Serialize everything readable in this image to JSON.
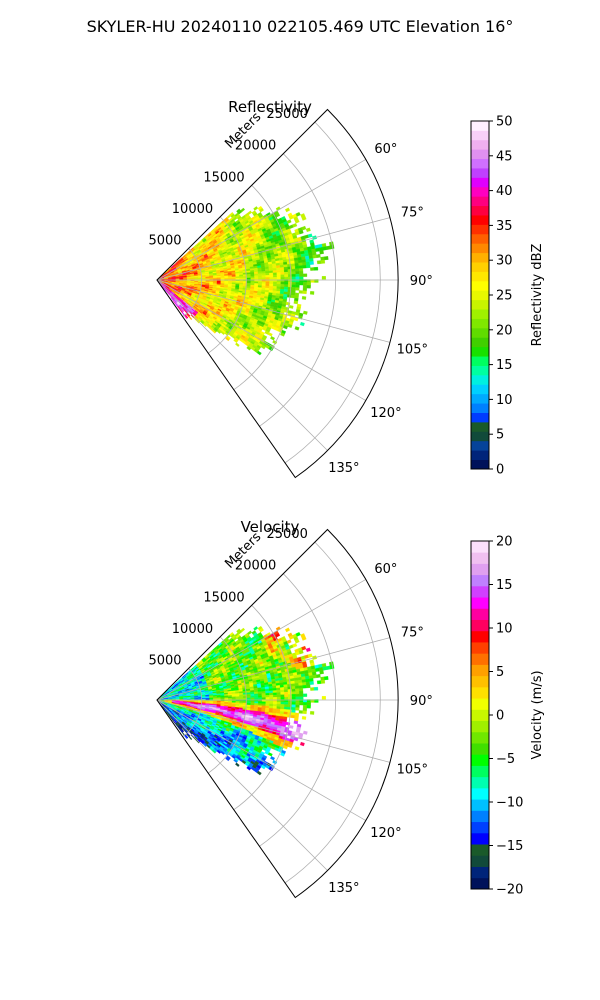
{
  "figure": {
    "suptitle": "SKYLER-HU  20240110  022105.469 UTC Elevation 16°"
  },
  "chart_data": [
    {
      "type": "heatmap",
      "projection": "polar-sector",
      "title": "Reflectivity",
      "radial_label": "Meters",
      "radial_ticks": [
        5000,
        10000,
        15000,
        20000,
        25000
      ],
      "radial_tick_labels": [
        "5000",
        "10000",
        "15000",
        "20000",
        "25000"
      ],
      "rlim": [
        0,
        27000
      ],
      "azimuth_range_deg": [
        45,
        145
      ],
      "azimuth_ticks": [
        60,
        75,
        90,
        105,
        120,
        135
      ],
      "azimuth_tick_labels": [
        "60°",
        "75°",
        "90°",
        "105°",
        "120°",
        "135°"
      ],
      "grid": true,
      "colorbar": {
        "label": "Reflectivity dBZ",
        "range": [
          0,
          50
        ],
        "ticks": [
          0,
          5,
          10,
          15,
          20,
          25,
          30,
          35,
          40,
          45,
          50
        ],
        "tick_labels": [
          "0",
          "5",
          "10",
          "15",
          "20",
          "25",
          "30",
          "35",
          "40",
          "45",
          "50"
        ],
        "colors": [
          "#00125a",
          "#00247a",
          "#06439a",
          "#114a3a",
          "#1a5a2a",
          "#003cff",
          "#0080ff",
          "#00aaff",
          "#00d0ff",
          "#00f0e0",
          "#00ffa0",
          "#00ff60",
          "#18e000",
          "#40d000",
          "#60dc00",
          "#80e800",
          "#a0f000",
          "#c8f400",
          "#e8f800",
          "#ffff00",
          "#ffe800",
          "#ffd000",
          "#ffb000",
          "#ff8800",
          "#ff6000",
          "#ff3000",
          "#ff0000",
          "#ff0040",
          "#ff0080",
          "#ff00c0",
          "#e000ff",
          "#c040ff",
          "#d070ff",
          "#e090f0",
          "#f0b0f0",
          "#f8d0f8",
          "#fff0ff"
        ]
      },
      "echo": {
        "max_range_by_azimuth": [
          [
            50,
            12000
          ],
          [
            58,
            15000
          ],
          [
            66,
            17500
          ],
          [
            74,
            19000
          ],
          [
            82,
            19500
          ],
          [
            90,
            18500
          ],
          [
            98,
            16500
          ],
          [
            106,
            17000
          ],
          [
            114,
            16000
          ],
          [
            122,
            15500
          ],
          [
            130,
            11500
          ],
          [
            138,
            5000
          ]
        ],
        "mean_by_range": [
          [
            0,
            35
          ],
          [
            5000,
            29
          ],
          [
            10000,
            25
          ],
          [
            15000,
            21
          ],
          [
            20000,
            18
          ]
        ]
      }
    },
    {
      "type": "heatmap",
      "projection": "polar-sector",
      "title": "Velocity",
      "radial_label": "Meters",
      "radial_ticks": [
        5000,
        10000,
        15000,
        20000,
        25000
      ],
      "radial_tick_labels": [
        "5000",
        "10000",
        "15000",
        "20000",
        "25000"
      ],
      "rlim": [
        0,
        27000
      ],
      "azimuth_range_deg": [
        45,
        145
      ],
      "azimuth_ticks": [
        60,
        75,
        90,
        105,
        120,
        135
      ],
      "azimuth_tick_labels": [
        "60°",
        "75°",
        "90°",
        "105°",
        "120°",
        "135°"
      ],
      "grid": true,
      "colorbar": {
        "label": "Velocity (m/s)",
        "range": [
          -20,
          20
        ],
        "ticks": [
          -20,
          -15,
          -10,
          -5,
          0,
          5,
          10,
          15,
          20
        ],
        "tick_labels": [
          "−20",
          "−15",
          "−10",
          "−5",
          "0",
          "5",
          "10",
          "15",
          "20"
        ],
        "colors": [
          "#00125a",
          "#00247a",
          "#114a3a",
          "#1a5a2a",
          "#0000ff",
          "#0040ff",
          "#0080ff",
          "#00c0ff",
          "#00ffff",
          "#00ffb0",
          "#00ff60",
          "#00ff00",
          "#40e000",
          "#70e800",
          "#a0f000",
          "#c8f800",
          "#f0ff00",
          "#ffe000",
          "#ffc000",
          "#ffa000",
          "#ff7000",
          "#ff4000",
          "#ff0000",
          "#ff0060",
          "#ff00a0",
          "#ff00ff",
          "#d040ff",
          "#c080ff",
          "#e0a0f0",
          "#f0c0f0",
          "#fbe0fb"
        ]
      },
      "echo": {
        "max_range_by_azimuth": [
          [
            50,
            12000
          ],
          [
            58,
            15000
          ],
          [
            66,
            17500
          ],
          [
            74,
            19000
          ],
          [
            82,
            19500
          ],
          [
            90,
            18500
          ],
          [
            98,
            16500
          ],
          [
            106,
            17000
          ],
          [
            114,
            16000
          ],
          [
            122,
            15500
          ],
          [
            130,
            11500
          ],
          [
            138,
            5000
          ]
        ]
      }
    }
  ]
}
